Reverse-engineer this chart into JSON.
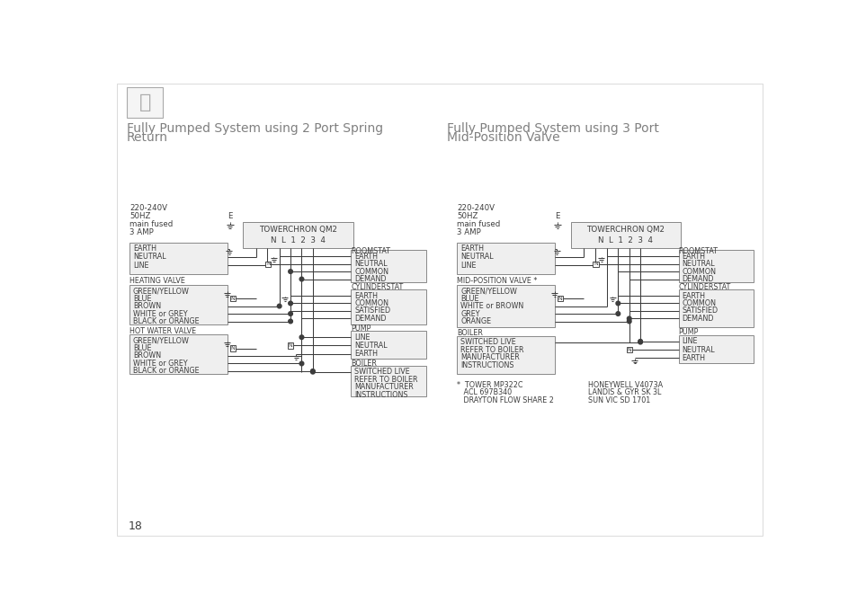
{
  "bg": "#ffffff",
  "tc": "#3d3d3d",
  "lc": "#3d3d3d",
  "bf": "#efefef",
  "be": "#888888",
  "title_color": "#808080",
  "fs": 5.8,
  "fs_title": 10.0,
  "page": "18",
  "title1_l1": "Fully Pumped System using 2 Port Spring",
  "title1_l2": "Return",
  "title2_l1": "Fully Pumped System using 3 Port",
  "title2_l2": "Mid-Position Valve",
  "footnote1": [
    "*  TOWER MP322C",
    "   ACL 697B340",
    "   DRAYTON FLOW SHARE 2"
  ],
  "footnote2": [
    "HONEYWELL V4073A",
    "LANDIS & GYR SK 3L",
    "SUN VIC SD 1701"
  ]
}
